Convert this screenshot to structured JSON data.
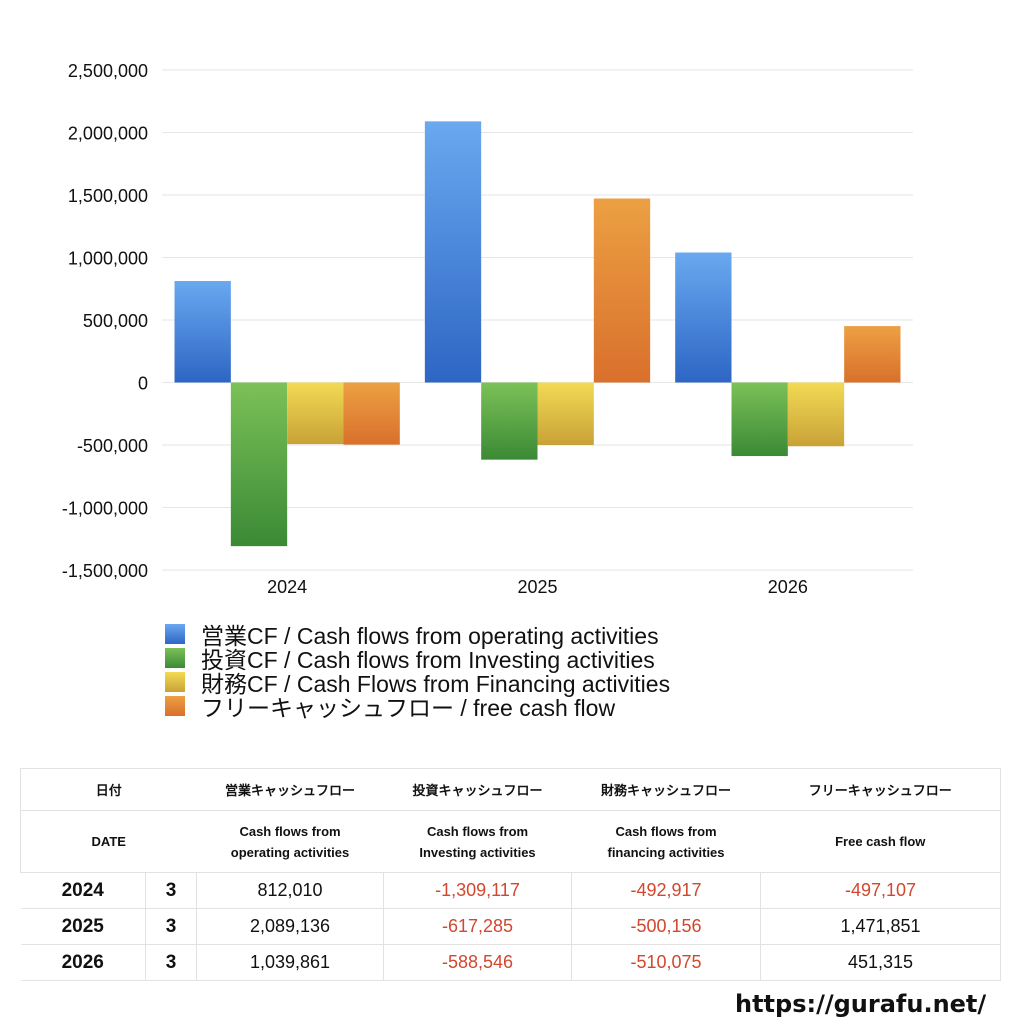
{
  "chart_data": {
    "type": "bar",
    "categories": [
      "2024",
      "2025",
      "2026"
    ],
    "series": [
      {
        "name": "営業CF / Cash flows from operating activities",
        "values": [
          812010,
          2089136,
          1039861
        ],
        "color_top": "#6aa8f0",
        "color_bottom": "#2d66c4"
      },
      {
        "name": "投資CF / Cash flows from Investing activities",
        "values": [
          -1309117,
          -617285,
          -588546
        ],
        "color_top": "#7cc158",
        "color_bottom": "#3a8a35"
      },
      {
        "name": "財務CF / Cash Flows from Financing activities",
        "values": [
          -492917,
          -500156,
          -510075
        ],
        "color_top": "#f2da55",
        "color_bottom": "#c9a237"
      },
      {
        "name": "フリーキャッシュフロー / free cash flow",
        "values": [
          -497107,
          1471851,
          451315
        ],
        "color_top": "#eca043",
        "color_bottom": "#d9702c"
      }
    ],
    "ylim": [
      -1500000,
      2500000
    ],
    "yticks": [
      -1500000,
      -1000000,
      -500000,
      0,
      500000,
      1000000,
      1500000,
      2000000,
      2500000
    ],
    "ytick_labels": [
      "-1,500,000",
      "-1,000,000",
      "-500,000",
      "0",
      "500,000",
      "1,000,000",
      "1,500,000",
      "2,000,000",
      "2,500,000"
    ],
    "grid": true,
    "legend_position": "bottom-left"
  },
  "table": {
    "header_jp": {
      "date": "日付",
      "op": "営業キャッシュフロー",
      "inv": "投資キャッシュフロー",
      "fin": "財務キャッシュフロー",
      "free": "フリーキャッシュフロー"
    },
    "header_en": {
      "date": "DATE",
      "op_1": "Cash flows from",
      "op_2": "operating activities",
      "inv_1": "Cash flows from",
      "inv_2": "Investing activities",
      "fin_1": "Cash flows from",
      "fin_2": "financing activities",
      "free": "Free cash flow"
    },
    "rows": [
      {
        "year": "2024",
        "month": "3",
        "op": "812,010",
        "inv": "-1,309,117",
        "fin": "-492,917",
        "free": "-497,107"
      },
      {
        "year": "2025",
        "month": "3",
        "op": "2,089,136",
        "inv": "-617,285",
        "fin": "-500,156",
        "free": "1,471,851"
      },
      {
        "year": "2026",
        "month": "3",
        "op": "1,039,861",
        "inv": "-588,546",
        "fin": "-510,075",
        "free": "451,315"
      }
    ]
  },
  "site_url": "https://gurafu.net/",
  "colors": {
    "negative_text": "#d2472e",
    "grid": "#e6e6e6"
  }
}
